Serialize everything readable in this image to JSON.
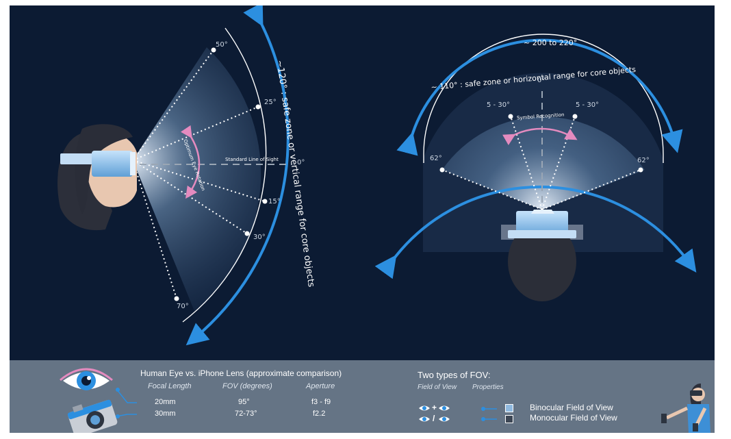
{
  "side_view": {
    "angles": {
      "a50": "50°",
      "a25": "25°",
      "a0": "0°",
      "a15": "15°",
      "a30": "30°",
      "a70": "70°"
    },
    "line_of_sight": "Standard Line of Sight",
    "optimum_eye_rotation": "Optimum Eye Rotation",
    "vertical_range": "~120° : safe zone or vertical range for core objects"
  },
  "top_view": {
    "total_range": "~ 200 to 220°",
    "horizontal_range": "~ 110° : safe zone or horizontal range for core objects",
    "angles": {
      "center": "0°",
      "left_symbol": "5 - 30°",
      "right_symbol": "5 - 30°",
      "left_62": "62°",
      "right_62": "62°"
    },
    "symbol_recognition": "Symbol Recognition"
  },
  "comparison": {
    "title": "Human Eye vs. iPhone Lens (approximate comparison)",
    "headers": [
      "Focal Length",
      "FOV (degrees)",
      "Aperture"
    ],
    "rows": [
      [
        "20mm",
        "95°",
        "f3 - f9"
      ],
      [
        "30mm",
        "72-73°",
        "f2.2"
      ]
    ]
  },
  "fov_types": {
    "title": "Two types of FOV:",
    "headers": [
      "Field of View",
      "Properties"
    ],
    "items": [
      {
        "symbol": "+",
        "label": "Binocular Field of View",
        "swatch": "#8fb9df"
      },
      {
        "symbol": "/",
        "label": "Monocular Field of View",
        "swatch": "#3c4654"
      }
    ]
  },
  "colors": {
    "background": "#0c1b33",
    "accent_blue": "#2c8fe0",
    "pink": "#e48bbf",
    "bottom_bar": "#657485"
  }
}
